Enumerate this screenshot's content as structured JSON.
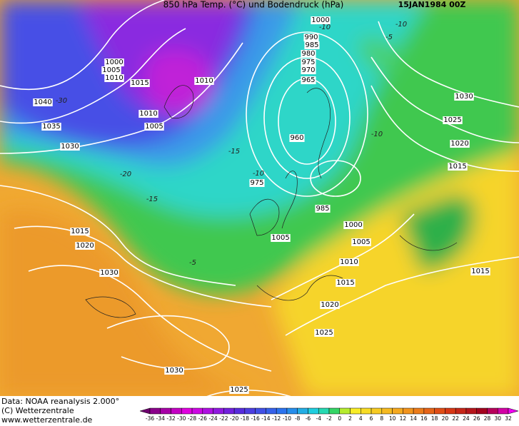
{
  "header": {
    "title": "850 hPa Temp. (°C) und Bodendruck (hPa)",
    "date": "15JAN1984 00Z"
  },
  "footer": {
    "source": "Data: NOAA reanalysis 2.000°",
    "copyright": "(C) Wetterzentrale",
    "url": "www.wetterzentrale.de"
  },
  "isobar_labels": [
    "1000",
    "990",
    "985",
    "980",
    "975",
    "970",
    "965",
    "960",
    "1000",
    "1005",
    "1010",
    "1015",
    "1010",
    "1040",
    "1035",
    "1030",
    "1010",
    "1005",
    "975",
    "985",
    "1000",
    "1005",
    "1005",
    "1010",
    "1015",
    "1020",
    "1025",
    "1015",
    "1020",
    "1030",
    "1030",
    "1025",
    "1030",
    "1025",
    "1020",
    "1015",
    "1015"
  ],
  "temperature_labels": [
    "-10",
    "-10",
    "-5",
    "-15",
    "-10",
    "-15",
    "-20",
    "-30",
    "-5",
    "-10"
  ],
  "colorbar": {
    "labels": [
      -36,
      -34,
      -32,
      -30,
      -28,
      -26,
      -24,
      -22,
      -20,
      -18,
      -16,
      -14,
      -12,
      -10,
      -8,
      -6,
      -4,
      -2,
      0,
      2,
      4,
      6,
      8,
      10,
      12,
      14,
      16,
      18,
      20,
      22,
      24,
      26,
      28,
      30,
      32
    ]
  }
}
